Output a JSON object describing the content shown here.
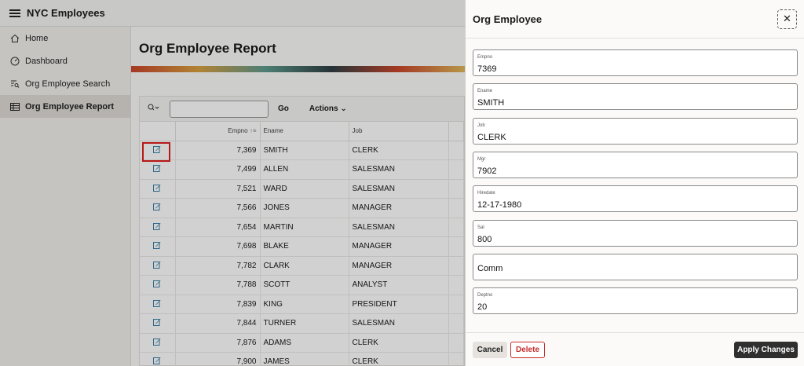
{
  "app": {
    "title": "NYC Employees"
  },
  "sidebar": {
    "items": [
      {
        "label": "Home",
        "icon": "home-icon"
      },
      {
        "label": "Dashboard",
        "icon": "dashboard-icon"
      },
      {
        "label": "Org Employee Search",
        "icon": "search-report-icon"
      },
      {
        "label": "Org Employee Report",
        "icon": "table-icon",
        "active": true
      }
    ]
  },
  "page": {
    "title": "Org Employee Report"
  },
  "toolbar": {
    "go_label": "Go",
    "actions_label": "Actions",
    "search_value": ""
  },
  "table": {
    "headers": {
      "empno": "Empno",
      "ename": "Ename",
      "job": "Job"
    },
    "rows": [
      {
        "empno": "7,369",
        "ename": "SMITH",
        "job": "CLERK"
      },
      {
        "empno": "7,499",
        "ename": "ALLEN",
        "job": "SALESMAN"
      },
      {
        "empno": "7,521",
        "ename": "WARD",
        "job": "SALESMAN"
      },
      {
        "empno": "7,566",
        "ename": "JONES",
        "job": "MANAGER"
      },
      {
        "empno": "7,654",
        "ename": "MARTIN",
        "job": "SALESMAN"
      },
      {
        "empno": "7,698",
        "ename": "BLAKE",
        "job": "MANAGER"
      },
      {
        "empno": "7,782",
        "ename": "CLARK",
        "job": "MANAGER"
      },
      {
        "empno": "7,788",
        "ename": "SCOTT",
        "job": "ANALYST"
      },
      {
        "empno": "7,839",
        "ename": "KING",
        "job": "PRESIDENT"
      },
      {
        "empno": "7,844",
        "ename": "TURNER",
        "job": "SALESMAN"
      },
      {
        "empno": "7,876",
        "ename": "ADAMS",
        "job": "CLERK"
      },
      {
        "empno": "7,900",
        "ename": "JAMES",
        "job": "CLERK"
      }
    ]
  },
  "drawer": {
    "title": "Org Employee",
    "fields": [
      {
        "label": "Empno",
        "value": "7369"
      },
      {
        "label": "Ename",
        "value": "SMITH"
      },
      {
        "label": "Job",
        "value": "CLERK"
      },
      {
        "label": "Mgr",
        "value": "7902"
      },
      {
        "label": "Hiredate",
        "value": "12-17-1980"
      },
      {
        "label": "Sal",
        "value": "800"
      },
      {
        "label": "Comm",
        "value": ""
      },
      {
        "label": "Deptno",
        "value": "20"
      }
    ],
    "cancel_label": "Cancel",
    "delete_label": "Delete",
    "apply_label": "Apply Changes"
  }
}
